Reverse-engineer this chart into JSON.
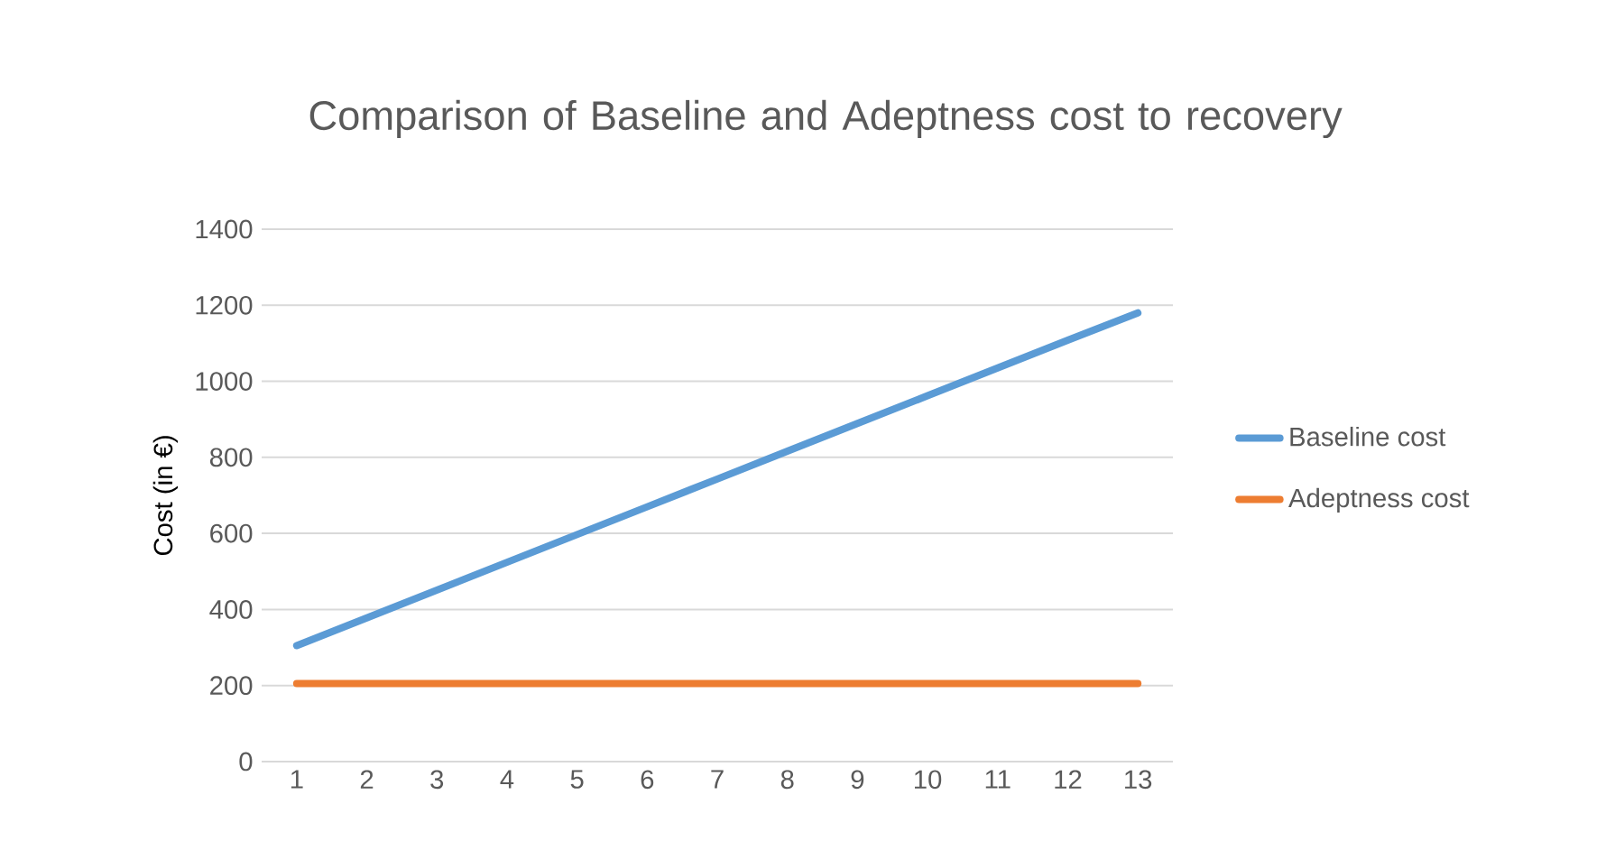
{
  "chart_data": {
    "type": "line",
    "title": "Comparison of Baseline and Adeptness cost to recovery",
    "ylabel": "Cost (in €)",
    "categories": [
      "1",
      "2",
      "3",
      "4",
      "5",
      "6",
      "7",
      "8",
      "9",
      "10",
      "11",
      "12",
      "13"
    ],
    "series": [
      {
        "name": "Baseline cost",
        "color": "#5b9bd5",
        "values": [
          305,
          378,
          451,
          524,
          597,
          670,
          743,
          816,
          889,
          962,
          1035,
          1108,
          1180
        ]
      },
      {
        "name": "Adeptness cost",
        "color": "#ed7d31",
        "values": [
          205,
          205,
          205,
          205,
          205,
          205,
          205,
          205,
          205,
          205,
          205,
          205,
          205
        ]
      }
    ],
    "ylim": [
      0,
      1400
    ],
    "yticks": [
      0,
      200,
      400,
      600,
      800,
      1000,
      1200,
      1400
    ],
    "grid": "y",
    "legend": "right",
    "marker": "none",
    "line_style": "solid"
  }
}
